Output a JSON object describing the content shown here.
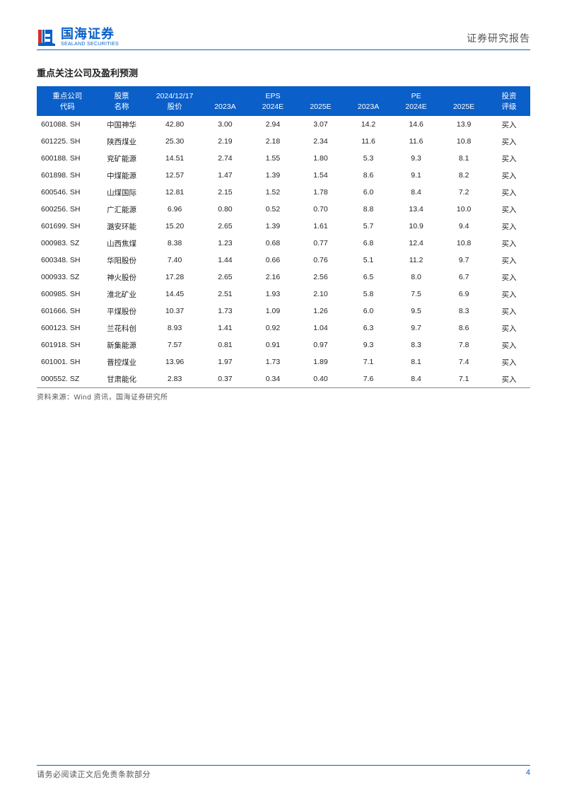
{
  "header": {
    "logo_cn": "国海证券",
    "logo_en": "SEALAND SECURITIES",
    "report_type": "证券研究报告"
  },
  "section_title": "重点关注公司及盈利预测",
  "table": {
    "type": "table",
    "header_bg": "#0a5fc9",
    "header_fg": "#ffffff",
    "body_fg": "#222222",
    "border_color": "#888888",
    "font_size_pt": 8,
    "columns_row1": [
      "重点公司",
      "股票",
      "2024/12/17",
      "",
      "EPS",
      "",
      "",
      "PE",
      "",
      "投资"
    ],
    "columns_row2": [
      "代码",
      "名称",
      "股价",
      "2023A",
      "2024E",
      "2025E",
      "2023A",
      "2024E",
      "2025E",
      "评级"
    ],
    "rows": [
      [
        "601088. SH",
        "中国神华",
        "42.80",
        "3.00",
        "2.94",
        "3.07",
        "14.2",
        "14.6",
        "13.9",
        "买入"
      ],
      [
        "601225. SH",
        "陕西煤业",
        "25.30",
        "2.19",
        "2.18",
        "2.34",
        "11.6",
        "11.6",
        "10.8",
        "买入"
      ],
      [
        "600188. SH",
        "兖矿能源",
        "14.51",
        "2.74",
        "1.55",
        "1.80",
        "5.3",
        "9.3",
        "8.1",
        "买入"
      ],
      [
        "601898. SH",
        "中煤能源",
        "12.57",
        "1.47",
        "1.39",
        "1.54",
        "8.6",
        "9.1",
        "8.2",
        "买入"
      ],
      [
        "600546. SH",
        "山煤国际",
        "12.81",
        "2.15",
        "1.52",
        "1.78",
        "6.0",
        "8.4",
        "7.2",
        "买入"
      ],
      [
        "600256. SH",
        "广汇能源",
        "6.96",
        "0.80",
        "0.52",
        "0.70",
        "8.8",
        "13.4",
        "10.0",
        "买入"
      ],
      [
        "601699. SH",
        "潞安环能",
        "15.20",
        "2.65",
        "1.39",
        "1.61",
        "5.7",
        "10.9",
        "9.4",
        "买入"
      ],
      [
        "000983. SZ",
        "山西焦煤",
        "8.38",
        "1.23",
        "0.68",
        "0.77",
        "6.8",
        "12.4",
        "10.8",
        "买入"
      ],
      [
        "600348. SH",
        "华阳股份",
        "7.40",
        "1.44",
        "0.66",
        "0.76",
        "5.1",
        "11.2",
        "9.7",
        "买入"
      ],
      [
        "000933. SZ",
        "神火股份",
        "17.28",
        "2.65",
        "2.16",
        "2.56",
        "6.5",
        "8.0",
        "6.7",
        "买入"
      ],
      [
        "600985. SH",
        "淮北矿业",
        "14.45",
        "2.51",
        "1.93",
        "2.10",
        "5.8",
        "7.5",
        "6.9",
        "买入"
      ],
      [
        "601666. SH",
        "平煤股份",
        "10.37",
        "1.73",
        "1.09",
        "1.26",
        "6.0",
        "9.5",
        "8.3",
        "买入"
      ],
      [
        "600123. SH",
        "兰花科创",
        "8.93",
        "1.41",
        "0.92",
        "1.04",
        "6.3",
        "9.7",
        "8.6",
        "买入"
      ],
      [
        "601918. SH",
        "新集能源",
        "7.57",
        "0.81",
        "0.91",
        "0.97",
        "9.3",
        "8.3",
        "7.8",
        "买入"
      ],
      [
        "601001. SH",
        "晋控煤业",
        "13.96",
        "1.97",
        "1.73",
        "1.89",
        "7.1",
        "8.1",
        "7.4",
        "买入"
      ],
      [
        "000552. SZ",
        "甘肃能化",
        "2.83",
        "0.37",
        "0.34",
        "0.40",
        "7.6",
        "8.4",
        "7.1",
        "买入"
      ]
    ]
  },
  "source": "资料来源：Wind 资讯，国海证券研究所",
  "footer": {
    "disclaimer": "请务必阅读正文后免责条款部分",
    "page": "4"
  },
  "colors": {
    "brand_blue": "#0a5fc9",
    "brand_red": "#d0312d",
    "text_dark": "#222222",
    "text_muted": "#555555",
    "background": "#ffffff"
  }
}
